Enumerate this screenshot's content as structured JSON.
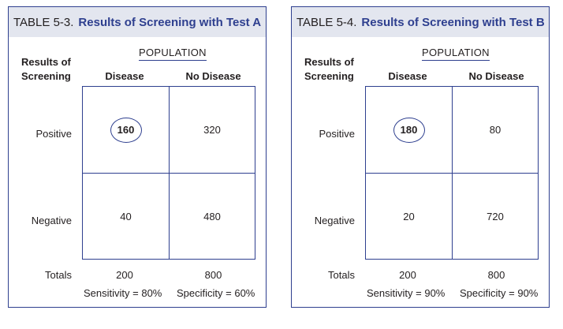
{
  "tables": [
    {
      "label": "TABLE 5-3.",
      "title": "Results of Screening with Test A",
      "results_label_line1": "Results of",
      "results_label_line2": "Screening",
      "population_label": "POPULATION",
      "columns": [
        "Disease",
        "No Disease"
      ],
      "rows": [
        {
          "label": "Positive",
          "disease": "160",
          "no_disease": "320"
        },
        {
          "label": "Negative",
          "disease": "40",
          "no_disease": "480"
        }
      ],
      "totals_label": "Totals",
      "totals": [
        "200",
        "800"
      ],
      "sensitivity": "Sensitivity = 80%",
      "specificity": "Specificity = 60%"
    },
    {
      "label": "TABLE 5-4.",
      "title": "Results of Screening with Test B",
      "results_label_line1": "Results of",
      "results_label_line2": "Screening",
      "population_label": "POPULATION",
      "columns": [
        "Disease",
        "No Disease"
      ],
      "rows": [
        {
          "label": "Positive",
          "disease": "180",
          "no_disease": "80"
        },
        {
          "label": "Negative",
          "disease": "20",
          "no_disease": "720"
        }
      ],
      "totals_label": "Totals",
      "totals": [
        "200",
        "800"
      ],
      "sensitivity": "Sensitivity = 90%",
      "specificity": "Specificity = 90%"
    }
  ],
  "colors": {
    "accent": "#2e3f8f",
    "header_bg": "#e3e6ef"
  }
}
